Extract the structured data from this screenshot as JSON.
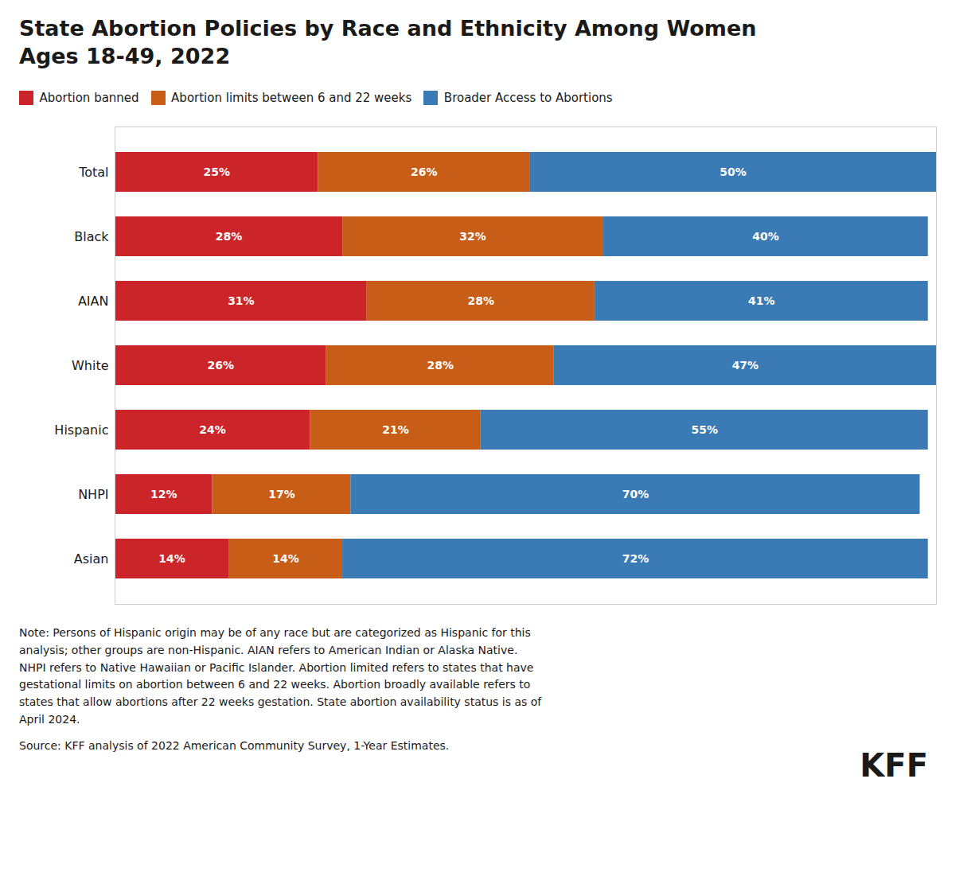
{
  "chart_data": {
    "type": "bar",
    "orientation": "horizontal",
    "stacked": true,
    "data_labels": true,
    "tick_labels": "y",
    "legend": "top-left",
    "title": "State Abortion Policies by Race and Ethnicity Among Women",
    "subtitle": "Ages 18-49, 2022",
    "categories": [
      "Total",
      "Black",
      "AIAN",
      "White",
      "Hispanic",
      "NHPI",
      "Asian"
    ],
    "xlim": [
      0,
      101
    ],
    "series": [
      {
        "name": "Abortion banned",
        "color": "#CC2529",
        "values": [
          25,
          28,
          31,
          26,
          24,
          12,
          14
        ],
        "value_labels": [
          "25%",
          "28%",
          "31%",
          "26%",
          "24%",
          "12%",
          "14%"
        ]
      },
      {
        "name": "Abortion limits between 6 and 22 weeks",
        "color": "#C85D17",
        "values": [
          26,
          32,
          28,
          28,
          21,
          17,
          14
        ],
        "value_labels": [
          "26%",
          "32%",
          "28%",
          "28%",
          "21%",
          "17%",
          "14%"
        ]
      },
      {
        "name": "Broader Access to Abortions",
        "color": "#3A7AB5",
        "values": [
          50,
          40,
          41,
          47,
          55,
          70,
          72
        ],
        "value_labels": [
          "50%",
          "40%",
          "41%",
          "47%",
          "55%",
          "70%",
          "72%"
        ]
      }
    ],
    "note": "Note: Persons of Hispanic origin may be of any race but are categorized as Hispanic for this\nanalysis; other groups are non-Hispanic. AIAN refers to American Indian or Alaska Native.\nNHPI refers to Native Hawaiian or Pacific Islander. Abortion limited refers to states that have\ngestational limits on abortion between 6 and 22 weeks. Abortion broadly available refers to\nstates that allow abortions after 22 weeks gestation. State abortion availability status is as of\nApril 2024.",
    "source": "Source: KFF analysis of 2022 American Community Survey, 1-Year Estimates.",
    "annotations": [
      "KFF"
    ]
  }
}
